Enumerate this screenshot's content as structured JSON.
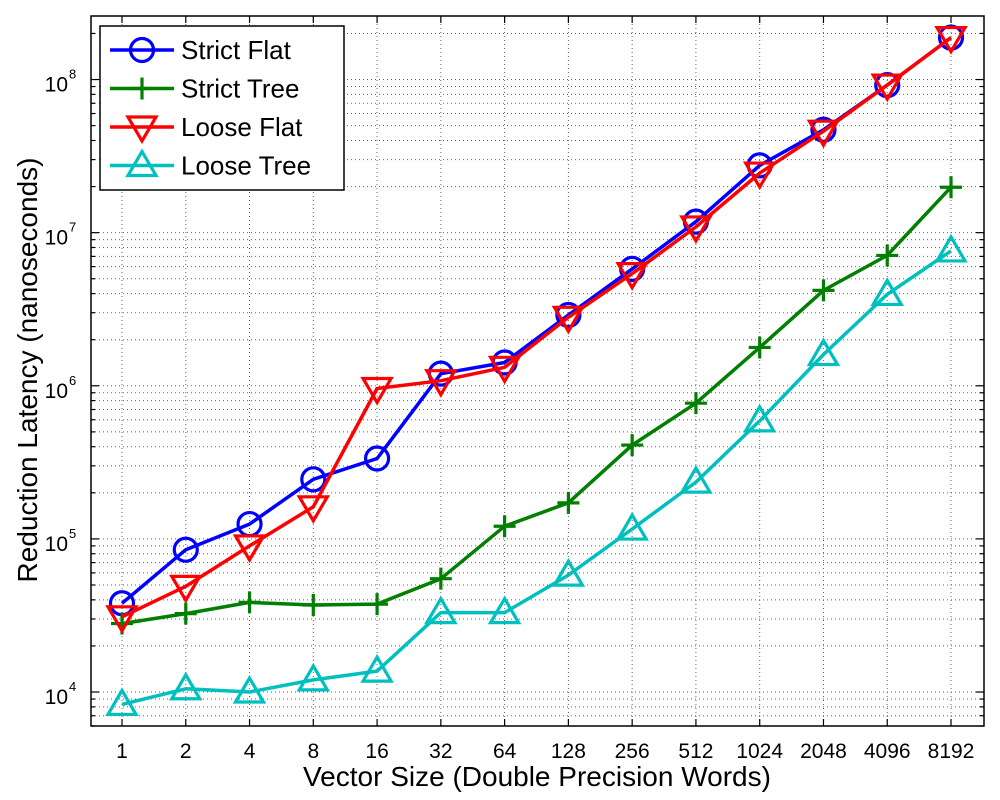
{
  "chart_data": {
    "type": "line",
    "title": "",
    "xlabel": "Vector Size (Double Precision Words)",
    "ylabel": "Reduction Latency (nanoseconds)",
    "x_scale": "categorical",
    "y_scale": "log",
    "ylim": [
      6000,
      260000000
    ],
    "grid": true,
    "legend_position": "top-left",
    "categories": [
      "1",
      "2",
      "4",
      "8",
      "16",
      "32",
      "64",
      "128",
      "256",
      "512",
      "1024",
      "2048",
      "4096",
      "8192"
    ],
    "y_tick_labels": [
      {
        "base": "10",
        "exp": "4",
        "value": 10000
      },
      {
        "base": "10",
        "exp": "5",
        "value": 100000
      },
      {
        "base": "10",
        "exp": "6",
        "value": 1000000
      },
      {
        "base": "10",
        "exp": "7",
        "value": 10000000
      },
      {
        "base": "10",
        "exp": "8",
        "value": 100000000
      }
    ],
    "series": [
      {
        "name": "Strict Flat",
        "color": "#0000ff",
        "marker": "circle",
        "values": [
          38000,
          85000,
          125000,
          245000,
          335000,
          1200000,
          1420000,
          2900000,
          5800000,
          11800000,
          27500000,
          47000000,
          92000000,
          188000000
        ]
      },
      {
        "name": "Strict Tree",
        "color": "#007f00",
        "marker": "plus",
        "values": [
          28000,
          32500,
          38500,
          37000,
          37500,
          55000,
          121000,
          172000,
          410000,
          770000,
          1780000,
          4200000,
          7100000,
          19800000
        ]
      },
      {
        "name": "Loose Flat",
        "color": "#ff0000",
        "marker": "triangle-down",
        "values": [
          31000,
          49000,
          90000,
          162000,
          960000,
          1080000,
          1320000,
          2800000,
          5400000,
          10900000,
          24500000,
          46000000,
          92000000,
          188000000
        ]
      },
      {
        "name": "Loose Tree",
        "color": "#00bfbf",
        "marker": "triangle-up",
        "values": [
          8300,
          10500,
          10000,
          12000,
          13700,
          33000,
          33000,
          58000,
          116000,
          235000,
          590000,
          1600000,
          3950000,
          7600000
        ]
      }
    ]
  }
}
